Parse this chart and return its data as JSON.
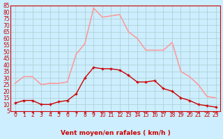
{
  "hours": [
    0,
    1,
    2,
    3,
    4,
    5,
    6,
    7,
    8,
    9,
    10,
    11,
    12,
    13,
    14,
    15,
    16,
    17,
    18,
    19,
    20,
    21,
    22,
    23
  ],
  "vent_moyen": [
    11,
    13,
    13,
    10,
    10,
    12,
    13,
    18,
    30,
    38,
    37,
    37,
    36,
    32,
    27,
    27,
    28,
    22,
    20,
    15,
    13,
    10,
    9,
    8
  ],
  "en_rafales": [
    26,
    31,
    31,
    25,
    26,
    26,
    27,
    48,
    56,
    83,
    76,
    77,
    78,
    65,
    60,
    51,
    51,
    51,
    57,
    35,
    31,
    25,
    16,
    15
  ],
  "bg_color": "#cceeff",
  "grid_color": "#aacccc",
  "line_color_mean": "#cc0000",
  "line_color_gust": "#ff9999",
  "marker_color_mean": "#cc0000",
  "marker_color_gust": "#ff9999",
  "xlabel": "Vent moyen/en rafales ( km/h )",
  "ylim": [
    5,
    85
  ],
  "yticks": [
    5,
    10,
    15,
    20,
    25,
    30,
    35,
    40,
    45,
    50,
    55,
    60,
    65,
    70,
    75,
    80,
    85
  ],
  "title_fontsize": 7,
  "axis_fontsize": 6.5,
  "tick_fontsize": 5.5
}
